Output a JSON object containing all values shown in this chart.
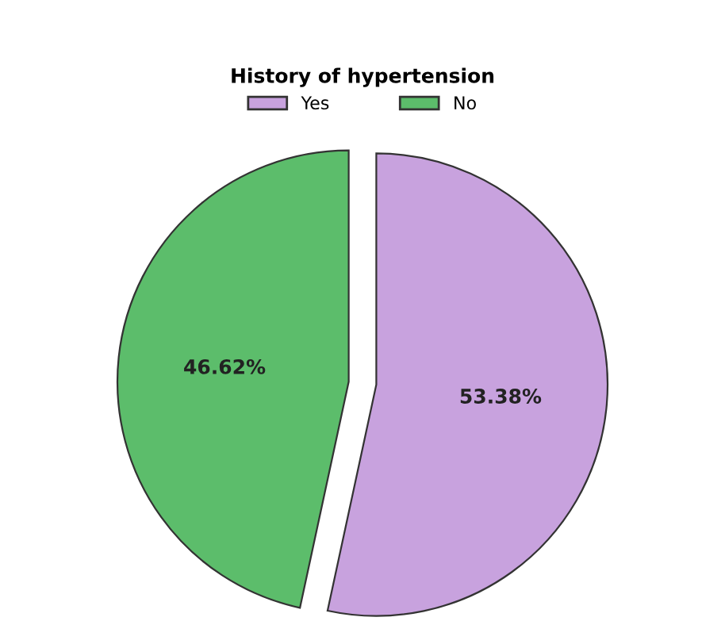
{
  "chart_data": {
    "type": "pie",
    "legend_title": "History of hypertension",
    "categories": [
      "Yes",
      "No"
    ],
    "values": [
      53.38,
      46.62
    ],
    "colors": [
      "#c8a2de",
      "#5cbd6b"
    ],
    "value_labels": [
      "53.38%",
      "46.62%"
    ],
    "legend": "top"
  }
}
